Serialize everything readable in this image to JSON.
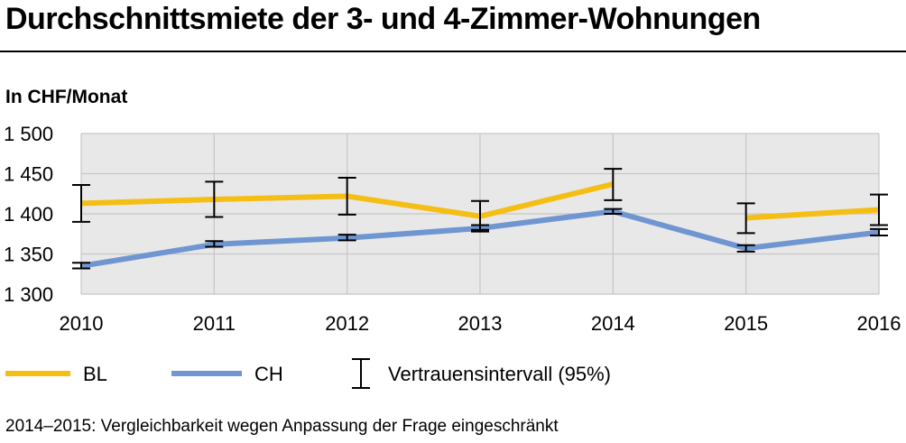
{
  "title": "Durchschnittsmiete der 3- und 4-Zimmer-Wohnungen",
  "footnote": "2014–2015: Vergleichbarkeit wegen Anpassung der Frage eingeschränkt",
  "colors": {
    "BL": "#f5be14",
    "CH": "#6f96d1",
    "plot_bg": "#e8e8e8",
    "grid": "#c6c6c6",
    "error": "#000000"
  },
  "chart_data": {
    "type": "line",
    "ylabel": "In CHF/Monat",
    "ylim": [
      1300,
      1500
    ],
    "yticks": [
      1300,
      1350,
      1400,
      1450,
      1500
    ],
    "ytick_labels": [
      "1 300",
      "1 350",
      "1 400",
      "1 450",
      "1 500"
    ],
    "x": [
      "2010",
      "2011",
      "2012",
      "2013",
      "2014",
      "2015",
      "2016"
    ],
    "grid": true,
    "legend_position": "bottom",
    "series": [
      {
        "name": "BL",
        "segments": [
          [
            0,
            4
          ],
          [
            5,
            6
          ]
        ],
        "values": [
          1413,
          1418,
          1422,
          1397,
          1437,
          1395,
          1405
        ],
        "ci_low": [
          1390,
          1396,
          1399,
          1380,
          1417,
          1376,
          1386
        ],
        "ci_high": [
          1436,
          1440,
          1445,
          1416,
          1456,
          1413,
          1424
        ]
      },
      {
        "name": "CH",
        "segments": [
          [
            0,
            6
          ]
        ],
        "values": [
          1335,
          1362,
          1370,
          1382,
          1403,
          1357,
          1377
        ],
        "ci_low": [
          1332,
          1359,
          1367,
          1378,
          1400,
          1353,
          1373
        ],
        "ci_high": [
          1339,
          1366,
          1374,
          1386,
          1406,
          1361,
          1381
        ]
      }
    ],
    "legend": [
      "BL",
      "CH",
      "Vertrauensintervall (95%)"
    ]
  }
}
